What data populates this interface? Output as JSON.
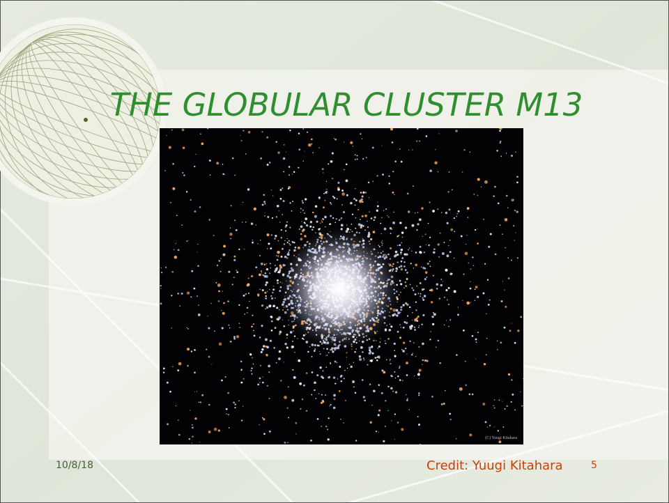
{
  "slide": {
    "title": "THE GLOBULAR CLUSTER M13",
    "image_credit": "(C) Yuugi Kitahara",
    "footer": {
      "date": "10/8/18",
      "credit": "Credit: Yuugi Kitahara",
      "page_number": "5"
    }
  }
}
